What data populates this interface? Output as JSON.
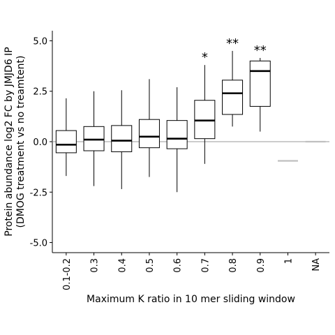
{
  "chart_data": {
    "type": "box",
    "xlabel": "Maximum K ratio in 10 mer sliding window",
    "ylabel_lines": [
      "Protein abundance log2 FC by JMJD6 IP",
      "(DMOG treatment vs no treamtent)"
    ],
    "yticks": [
      -5.0,
      -2.5,
      0.0,
      2.5,
      5.0
    ],
    "ytick_labels": [
      "-5.0",
      "-2.5",
      "0.0",
      "2.5",
      "5.0"
    ],
    "ylim": [
      -5.5,
      5.5
    ],
    "reference_line_y": 0,
    "categories": [
      "0.1-0.2",
      "0.3",
      "0.4",
      "0.5",
      "0.6",
      "0.7",
      "0.8",
      "0.9",
      "1",
      "NA"
    ],
    "boxes": [
      {
        "category": "0.1-0.2",
        "whisker_low": -1.7,
        "q1": -0.55,
        "median": -0.15,
        "q3": 0.55,
        "whisker_high": 2.15,
        "significance": ""
      },
      {
        "category": "0.3",
        "whisker_low": -2.2,
        "q1": -0.45,
        "median": 0.1,
        "q3": 0.75,
        "whisker_high": 2.5,
        "significance": ""
      },
      {
        "category": "0.4",
        "whisker_low": -2.35,
        "q1": -0.5,
        "median": 0.05,
        "q3": 0.8,
        "whisker_high": 2.55,
        "significance": ""
      },
      {
        "category": "0.5",
        "whisker_low": -1.75,
        "q1": -0.3,
        "median": 0.25,
        "q3": 1.1,
        "whisker_high": 3.1,
        "significance": ""
      },
      {
        "category": "0.6",
        "whisker_low": -2.5,
        "q1": -0.35,
        "median": 0.15,
        "q3": 1.05,
        "whisker_high": 2.7,
        "significance": ""
      },
      {
        "category": "0.7",
        "whisker_low": -1.1,
        "q1": 0.15,
        "median": 1.05,
        "q3": 2.05,
        "whisker_high": 3.8,
        "significance": "*"
      },
      {
        "category": "0.8",
        "whisker_low": 0.75,
        "q1": 1.35,
        "median": 2.4,
        "q3": 3.05,
        "whisker_high": 4.5,
        "significance": "**"
      },
      {
        "category": "0.9",
        "whisker_low": 0.5,
        "q1": 1.75,
        "median": 3.5,
        "q3": 4.0,
        "whisker_high": 4.15,
        "significance": "**"
      },
      {
        "category": "1",
        "single_value": -0.95,
        "color": "#bfbfbf"
      },
      {
        "category": "NA",
        "single_value": 0.0,
        "color": "#bfbfbf"
      }
    ],
    "colors": {
      "box_stroke": "#000000",
      "reference_line": "#999999",
      "grey_marks": "#bfbfbf"
    }
  }
}
